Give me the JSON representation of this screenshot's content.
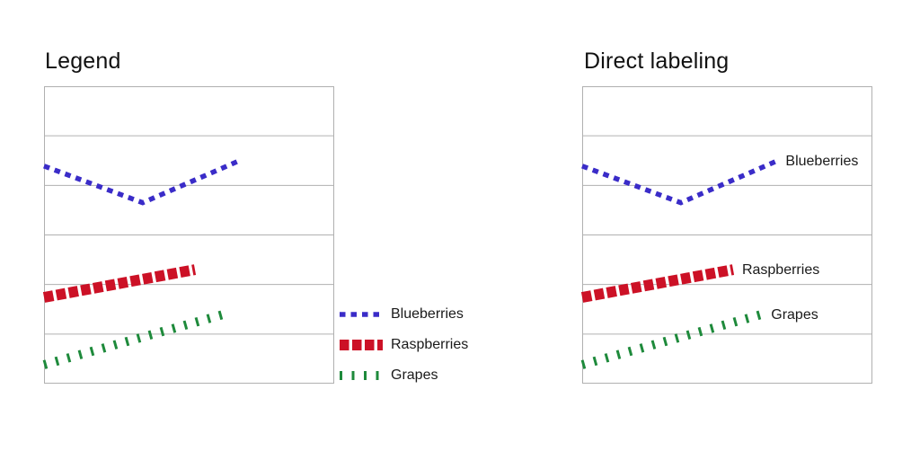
{
  "page": {
    "background": "#ffffff",
    "text_color": "#1a1a1a"
  },
  "colors": {
    "grid": "#b0b0b0",
    "title_text": "#111111",
    "blueberries": "#3a2cc8",
    "raspberries": "#cc1126",
    "grapes": "#1e8a3b"
  },
  "panels": {
    "legend_panel": {
      "title": "Legend",
      "annotation_mode": "legend",
      "legend_position": "right-bottom"
    },
    "direct_panel": {
      "title": "Direct labeling",
      "annotation_mode": "direct-labels"
    }
  },
  "chart_data": {
    "type": "line",
    "title": "",
    "xlabel": "",
    "ylabel": "",
    "xlim": [
      0,
      1
    ],
    "ylim": [
      0,
      6
    ],
    "grid": true,
    "tick_labels": "none",
    "description": "Two identical small line charts comparing legend vs direct labeling; y in gridline units (0 bottom to 6 top), x as fraction of plot width",
    "series": [
      {
        "name": "Blueberries",
        "color": "#3a2cc8",
        "stroke_width": 5.5,
        "dash": "6.5 6",
        "points": [
          [
            0,
            4.39
          ],
          [
            0.34,
            3.65
          ],
          [
            0.67,
            4.49
          ]
        ]
      },
      {
        "name": "Raspberries",
        "color": "#cc1126",
        "stroke_width": 12,
        "dash": "10.5 3.5",
        "points": [
          [
            0,
            1.74
          ],
          [
            0.52,
            2.3
          ]
        ]
      },
      {
        "name": "Grapes",
        "color": "#1e8a3b",
        "stroke_width": 10,
        "dash": "3 10.5",
        "points": [
          [
            0,
            0.38
          ],
          [
            0.62,
            1.4
          ]
        ]
      }
    ]
  }
}
